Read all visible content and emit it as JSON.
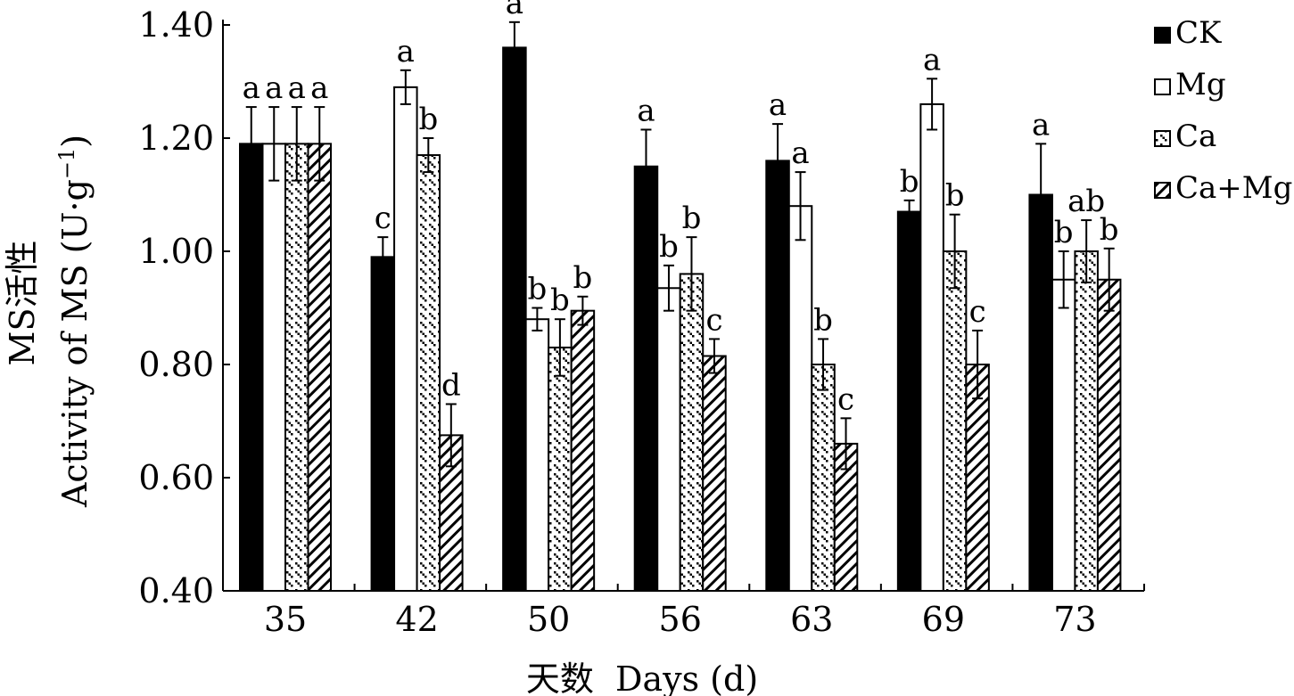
{
  "chart_data": {
    "type": "bar",
    "xlabel": "天数  Days (d)",
    "ylabel_cn": "MS活性",
    "ylabel_en": "Activity of MS (U·g",
    "ylabel_sup": "−1",
    "ylabel_close": ")",
    "ylim": [
      0.4,
      1.4
    ],
    "yticks": [
      "0.40",
      "0.60",
      "0.80",
      "1.00",
      "1.20",
      "1.40"
    ],
    "categories": [
      "35",
      "42",
      "50",
      "56",
      "63",
      "69",
      "73"
    ],
    "series": [
      {
        "name": "CK",
        "fill": "solid",
        "values": [
          1.19,
          0.99,
          1.36,
          1.15,
          1.16,
          1.07,
          1.1
        ],
        "errors": [
          0.065,
          0.035,
          0.045,
          0.065,
          0.065,
          0.02,
          0.09
        ],
        "labels": [
          "a",
          "c",
          "a",
          "a",
          "a",
          "b",
          "a"
        ]
      },
      {
        "name": "Mg",
        "fill": "open",
        "values": [
          1.19,
          1.29,
          0.88,
          0.935,
          1.08,
          1.26,
          0.95
        ],
        "errors": [
          0.065,
          0.03,
          0.02,
          0.04,
          0.06,
          0.045,
          0.05
        ],
        "labels": [
          "a",
          "a",
          "b",
          "b",
          "a",
          "a",
          "b"
        ]
      },
      {
        "name": "Ca",
        "fill": "dots",
        "values": [
          1.19,
          1.17,
          0.83,
          0.96,
          0.8,
          1.0,
          1.0
        ],
        "errors": [
          0.065,
          0.03,
          0.05,
          0.065,
          0.045,
          0.065,
          0.055
        ],
        "labels": [
          "a",
          "b",
          "b",
          "b",
          "b",
          "b",
          "ab"
        ]
      },
      {
        "name": "Ca+Mg",
        "fill": "hatch",
        "values": [
          1.19,
          0.675,
          0.895,
          0.815,
          0.66,
          0.8,
          0.95
        ],
        "errors": [
          0.065,
          0.055,
          0.025,
          0.03,
          0.045,
          0.06,
          0.055
        ],
        "labels": [
          "a",
          "d",
          "b",
          "c",
          "c",
          "c",
          "b"
        ]
      }
    ],
    "legend": "top-right",
    "grid": false
  }
}
